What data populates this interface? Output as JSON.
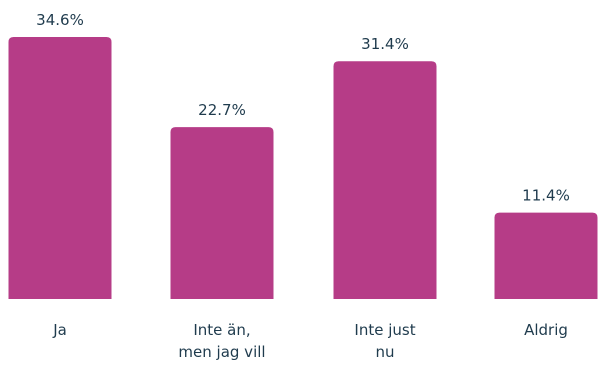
{
  "chart_data": {
    "type": "bar",
    "categories": [
      [
        "Ja"
      ],
      [
        "Inte än,",
        "men jag vill"
      ],
      [
        "Inte just",
        "nu"
      ],
      [
        "Aldrig"
      ]
    ],
    "values": [
      34.6,
      22.7,
      31.4,
      11.4
    ],
    "value_labels": [
      "34.6%",
      "22.7%",
      "31.4%",
      "11.4%"
    ],
    "ylim": [
      0,
      34.6
    ],
    "grid": false,
    "legend": "none",
    "bar_color": "#b63c87",
    "text_color": "#1f3b4d"
  }
}
